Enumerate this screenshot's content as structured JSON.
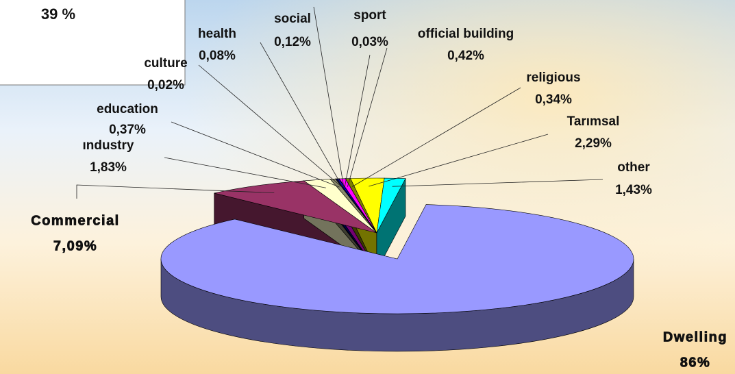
{
  "chart_data": {
    "type": "pie",
    "annotation": "39 %",
    "categories": [
      "Dwelling",
      "Commercial",
      "ındustry",
      "education",
      "culture",
      "health",
      "social",
      "sport",
      "official building",
      "religious",
      "Tarımsal",
      "other"
    ],
    "values": [
      86,
      7.09,
      1.83,
      0.37,
      0.02,
      0.08,
      0.12,
      0.03,
      0.42,
      0.34,
      2.29,
      1.43
    ],
    "value_labels": [
      "86%",
      "7,09%",
      "1,83%",
      "0,37%",
      "0,02%",
      "0,08%",
      "0,12%",
      "0,03%",
      "0,42%",
      "0,34%",
      "2,29%",
      "1,43%"
    ],
    "colors": [
      "#9999ff",
      "#993366",
      "#ffffcc",
      "#8a8a6a",
      "#000000",
      "#000080",
      "#0000ff",
      "#800080",
      "#ff00ff",
      "#808000",
      "#ffff00",
      "#00ffff"
    ],
    "exploded": "Dwelling"
  }
}
